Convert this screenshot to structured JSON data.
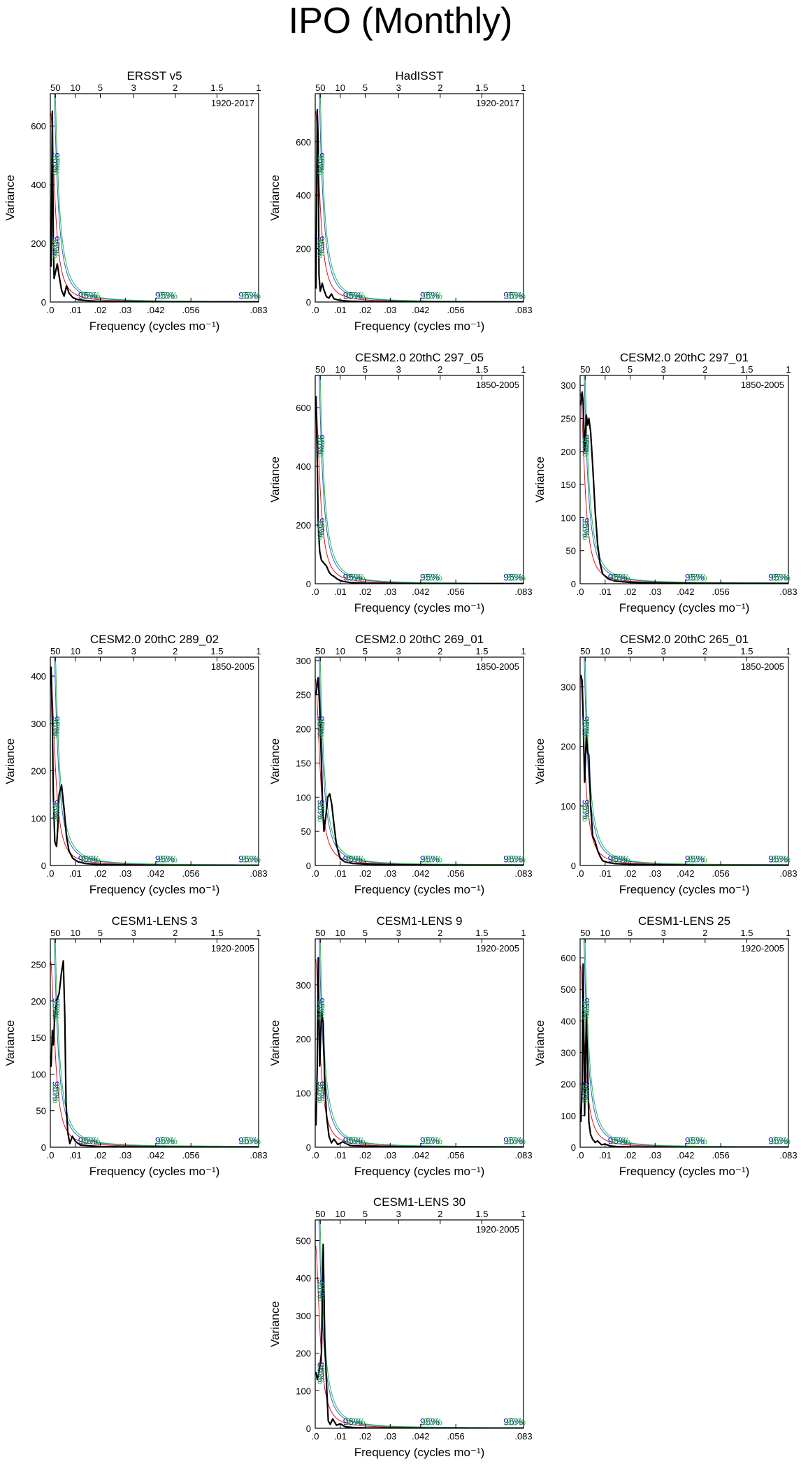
{
  "title": "IPO (Monthly)",
  "chart_data": [
    {
      "type": "line",
      "title": "ERSST v5",
      "period": "1920-2017",
      "xlabel": "Frequency (cycles mo⁻¹)",
      "ylabel": "Variance",
      "xlim": [
        0,
        0.083
      ],
      "ylim": [
        0,
        710
      ],
      "xticks": [
        ".0",
        ".01",
        ".02",
        ".03",
        ".042",
        ".056",
        ".083"
      ],
      "top_ticks": [
        "50",
        "10",
        "5",
        "3",
        "2",
        "1.5",
        "1"
      ],
      "yticks": [
        0,
        200,
        400,
        600
      ],
      "confidence_labels": [
        "95%",
        "95%",
        "95%",
        "95%",
        "95%"
      ],
      "series": [
        {
          "x": [
            0.0003,
            0.0008,
            0.0012,
            0.0015,
            0.002,
            0.0028,
            0.0035,
            0.0045,
            0.0055,
            0.0065,
            0.0075,
            0.009,
            0.011,
            0.014,
            0.02,
            0.03,
            0.05,
            0.083
          ],
          "y": [
            120,
            650,
            200,
            80,
            100,
            130,
            90,
            40,
            20,
            55,
            30,
            15,
            8,
            5,
            2,
            1,
            0.5,
            0.3
          ]
        }
      ],
      "background_red": [
        0,
        0.083
      ],
      "background_green": [
        0,
        0.083
      ],
      "background_blue": [
        0,
        0.083
      ]
    },
    {
      "type": "line",
      "title": "HadISST",
      "period": "1920-2017",
      "xlabel": "Frequency (cycles mo⁻¹)",
      "ylabel": "Variance",
      "xlim": [
        0,
        0.083
      ],
      "ylim": [
        0,
        780
      ],
      "xticks": [
        ".0",
        ".01",
        ".02",
        ".03",
        ".042",
        ".056",
        ".083"
      ],
      "top_ticks": [
        "50",
        "10",
        "5",
        "3",
        "2",
        "1.5",
        "1"
      ],
      "yticks": [
        0,
        200,
        400,
        600
      ],
      "confidence_labels": [
        "95%",
        "95%",
        "95%",
        "95%",
        "95%"
      ],
      "series": [
        {
          "x": [
            0.0003,
            0.0008,
            0.0012,
            0.0015,
            0.002,
            0.0028,
            0.0035,
            0.0045,
            0.0055,
            0.0065,
            0.0075,
            0.009,
            0.011,
            0.014,
            0.02,
            0.03,
            0.05,
            0.083
          ],
          "y": [
            50,
            720,
            600,
            100,
            40,
            70,
            45,
            20,
            15,
            30,
            12,
            8,
            5,
            3,
            2,
            1,
            0.5,
            0.3
          ]
        }
      ]
    },
    {
      "type": "line",
      "title": "CESM2.0 20thC 297_05",
      "period": "1850-2005",
      "xlabel": "Frequency (cycles mo⁻¹)",
      "ylabel": "Variance",
      "xlim": [
        0,
        0.083
      ],
      "ylim": [
        0,
        710
      ],
      "xticks": [
        ".0",
        ".01",
        ".02",
        ".03",
        ".042",
        ".056",
        ".083"
      ],
      "top_ticks": [
        "50",
        "10",
        "5",
        "3",
        "2",
        "1.5",
        "1"
      ],
      "yticks": [
        0,
        200,
        400,
        600
      ],
      "confidence_labels": [
        "95%",
        "95%",
        "95%",
        "95%",
        "95%"
      ],
      "series": [
        {
          "x": [
            0.0003,
            0.0008,
            0.0012,
            0.0018,
            0.0025,
            0.0035,
            0.0045,
            0.0055,
            0.0065,
            0.0075,
            0.009,
            0.011,
            0.014,
            0.02,
            0.03,
            0.05,
            0.083
          ],
          "y": [
            640,
            420,
            200,
            110,
            80,
            70,
            60,
            40,
            30,
            25,
            15,
            8,
            4,
            2,
            1,
            0.5,
            0.3
          ]
        }
      ]
    },
    {
      "type": "line",
      "title": "CESM2.0 20thC 297_01",
      "period": "1850-2005",
      "xlabel": "Frequency (cycles mo⁻¹)",
      "ylabel": "Variance",
      "xlim": [
        0,
        0.083
      ],
      "ylim": [
        0,
        315
      ],
      "xticks": [
        ".0",
        ".01",
        ".02",
        ".03",
        ".042",
        ".056",
        ".083"
      ],
      "top_ticks": [
        "50",
        "10",
        "5",
        "3",
        "2",
        "1.5",
        "1"
      ],
      "yticks": [
        0,
        50,
        100,
        150,
        200,
        250,
        300
      ],
      "confidence_labels": [
        "95%",
        "95%",
        "95%",
        "95%",
        "95%"
      ],
      "series": [
        {
          "x": [
            0.0003,
            0.0008,
            0.0012,
            0.0018,
            0.0025,
            0.003,
            0.0035,
            0.0042,
            0.005,
            0.006,
            0.007,
            0.008,
            0.009,
            0.011,
            0.014,
            0.02,
            0.03,
            0.05,
            0.083
          ],
          "y": [
            270,
            290,
            275,
            200,
            255,
            240,
            250,
            230,
            180,
            110,
            60,
            30,
            15,
            8,
            4,
            2,
            1,
            0.5,
            0.3
          ]
        }
      ]
    },
    {
      "type": "line",
      "title": "CESM2.0 20thC 289_02",
      "period": "1850-2005",
      "xlabel": "Frequency (cycles mo⁻¹)",
      "ylabel": "Variance",
      "xlim": [
        0,
        0.083
      ],
      "ylim": [
        0,
        440
      ],
      "xticks": [
        ".0",
        ".01",
        ".02",
        ".03",
        ".042",
        ".056",
        ".083"
      ],
      "top_ticks": [
        "50",
        "10",
        "5",
        "3",
        "2",
        "1.5",
        "1"
      ],
      "yticks": [
        0,
        100,
        200,
        300,
        400
      ],
      "confidence_labels": [
        "95%",
        "95%",
        "95%",
        "95%",
        "95%"
      ],
      "series": [
        {
          "x": [
            0.0003,
            0.0008,
            0.0012,
            0.0018,
            0.0025,
            0.003,
            0.0035,
            0.0045,
            0.0055,
            0.0065,
            0.0075,
            0.009,
            0.011,
            0.014,
            0.02,
            0.03,
            0.05,
            0.083
          ],
          "y": [
            420,
            300,
            150,
            50,
            40,
            80,
            150,
            170,
            120,
            60,
            30,
            15,
            8,
            4,
            2,
            1,
            0.5,
            0.3
          ]
        }
      ]
    },
    {
      "type": "line",
      "title": "CESM2.0 20thC 269_01",
      "period": "1850-2005",
      "xlabel": "Frequency (cycles mo⁻¹)",
      "ylabel": "Variance",
      "xlim": [
        0,
        0.083
      ],
      "ylim": [
        0,
        305
      ],
      "xticks": [
        ".0",
        ".01",
        ".02",
        ".03",
        ".042",
        ".056",
        ".083"
      ],
      "top_ticks": [
        "50",
        "10",
        "5",
        "3",
        "2",
        "1.5",
        "1"
      ],
      "yticks": [
        0,
        50,
        100,
        150,
        200,
        250,
        300
      ],
      "confidence_labels": [
        "95%",
        "95%",
        "95%",
        "95%",
        "95%"
      ],
      "series": [
        {
          "x": [
            0.0003,
            0.0008,
            0.0012,
            0.0018,
            0.0025,
            0.003,
            0.0035,
            0.0042,
            0.005,
            0.0058,
            0.0066,
            0.0075,
            0.0085,
            0.01,
            0.012,
            0.015,
            0.02,
            0.03,
            0.05,
            0.083
          ],
          "y": [
            250,
            265,
            275,
            230,
            150,
            80,
            50,
            70,
            100,
            105,
            90,
            60,
            30,
            10,
            5,
            3,
            2,
            1,
            0.5,
            0.3
          ]
        }
      ]
    },
    {
      "type": "line",
      "title": "CESM2.0 20thC 265_01",
      "period": "1850-2005",
      "xlabel": "Frequency (cycles mo⁻¹)",
      "ylabel": "Variance",
      "xlim": [
        0,
        0.083
      ],
      "ylim": [
        0,
        350
      ],
      "xticks": [
        ".0",
        ".01",
        ".02",
        ".03",
        ".042",
        ".056",
        ".083"
      ],
      "top_ticks": [
        "50",
        "10",
        "5",
        "3",
        "2",
        "1.5",
        "1"
      ],
      "yticks": [
        0,
        100,
        200,
        300
      ],
      "confidence_labels": [
        "95%",
        "95%",
        "95%",
        "95%",
        "95%"
      ],
      "series": [
        {
          "x": [
            0.0003,
            0.0008,
            0.0012,
            0.0018,
            0.0025,
            0.003,
            0.0035,
            0.0042,
            0.005,
            0.006,
            0.007,
            0.008,
            0.009,
            0.011,
            0.014,
            0.02,
            0.03,
            0.05,
            0.083
          ],
          "y": [
            320,
            310,
            250,
            140,
            220,
            190,
            185,
            100,
            50,
            40,
            25,
            15,
            8,
            5,
            3,
            2,
            1,
            0.5,
            0.3
          ]
        }
      ]
    },
    {
      "type": "line",
      "title": "CESM1-LENS 3",
      "period": "1920-2005",
      "xlabel": "Frequency (cycles mo⁻¹)",
      "ylabel": "Variance",
      "xlim": [
        0,
        0.083
      ],
      "ylim": [
        0,
        285
      ],
      "xticks": [
        ".0",
        ".01",
        ".02",
        ".03",
        ".042",
        ".056",
        ".083"
      ],
      "top_ticks": [
        "50",
        "10",
        "5",
        "3",
        "2",
        "1.5",
        "1"
      ],
      "yticks": [
        0,
        50,
        100,
        150,
        200,
        250
      ],
      "confidence_labels": [
        "95%",
        "95%",
        "95%",
        "95%",
        "95%"
      ],
      "series": [
        {
          "x": [
            0.0003,
            0.0008,
            0.0012,
            0.0018,
            0.0025,
            0.0035,
            0.0045,
            0.0052,
            0.0058,
            0.0063,
            0.007,
            0.0078,
            0.0088,
            0.01,
            0.012,
            0.015,
            0.02,
            0.03,
            0.05,
            0.083
          ],
          "y": [
            110,
            160,
            140,
            180,
            200,
            210,
            240,
            255,
            180,
            60,
            20,
            5,
            15,
            8,
            3,
            2,
            1,
            0.5,
            0.3,
            0.2
          ]
        }
      ]
    },
    {
      "type": "line",
      "title": "CESM1-LENS 9",
      "period": "1920-2005",
      "xlabel": "Frequency (cycles mo⁻¹)",
      "ylabel": "Variance",
      "xlim": [
        0,
        0.083
      ],
      "ylim": [
        0,
        385
      ],
      "xticks": [
        ".0",
        ".01",
        ".02",
        ".03",
        ".042",
        ".056",
        ".083"
      ],
      "top_ticks": [
        "50",
        "10",
        "5",
        "3",
        "2",
        "1.5",
        "1"
      ],
      "yticks": [
        0,
        100,
        200,
        300
      ],
      "confidence_labels": [
        "95%",
        "95%",
        "95%",
        "95%",
        "95%"
      ],
      "series": [
        {
          "x": [
            0.0003,
            0.0008,
            0.0012,
            0.0018,
            0.0025,
            0.0032,
            0.0038,
            0.0045,
            0.0055,
            0.0065,
            0.0075,
            0.009,
            0.011,
            0.014,
            0.02,
            0.03,
            0.05,
            0.083
          ],
          "y": [
            40,
            150,
            350,
            150,
            250,
            230,
            120,
            60,
            20,
            8,
            15,
            5,
            10,
            3,
            2,
            1,
            0.5,
            0.3
          ]
        }
      ]
    },
    {
      "type": "line",
      "title": "CESM1-LENS 25",
      "period": "1920-2005",
      "xlabel": "Frequency (cycles mo⁻¹)",
      "ylabel": "Variance",
      "xlim": [
        0,
        0.083
      ],
      "ylim": [
        0,
        660
      ],
      "xticks": [
        ".0",
        ".01",
        ".02",
        ".03",
        ".042",
        ".056",
        ".083"
      ],
      "top_ticks": [
        "50",
        "10",
        "5",
        "3",
        "2",
        "1.5",
        "1"
      ],
      "yticks": [
        0,
        100,
        200,
        300,
        400,
        500,
        600
      ],
      "confidence_labels": [
        "95%",
        "95%",
        "95%",
        "95%",
        "95%"
      ],
      "series": [
        {
          "x": [
            0.0003,
            0.0008,
            0.0012,
            0.0018,
            0.0025,
            0.003,
            0.0035,
            0.0042,
            0.005,
            0.006,
            0.007,
            0.0085,
            0.01,
            0.012,
            0.015,
            0.02,
            0.03,
            0.05,
            0.083
          ],
          "y": [
            80,
            200,
            580,
            100,
            420,
            250,
            80,
            40,
            25,
            15,
            20,
            8,
            10,
            4,
            2,
            1,
            0.5,
            0.3,
            0.2
          ]
        }
      ]
    },
    {
      "type": "line",
      "title": "CESM1-LENS 30",
      "period": "1920-2005",
      "xlabel": "Frequency (cycles mo⁻¹)",
      "ylabel": "Variance",
      "xlim": [
        0,
        0.083
      ],
      "ylim": [
        0,
        555
      ],
      "xticks": [
        ".0",
        ".01",
        ".02",
        ".03",
        ".042",
        ".056",
        ".083"
      ],
      "top_ticks": [
        "50",
        "10",
        "5",
        "3",
        "2",
        "1.5",
        "1"
      ],
      "yticks": [
        0,
        100,
        200,
        300,
        400,
        500
      ],
      "confidence_labels": [
        "95%",
        "95%",
        "95%",
        "95%",
        "95%"
      ],
      "series": [
        {
          "x": [
            0.0003,
            0.0008,
            0.0012,
            0.0018,
            0.0025,
            0.0032,
            0.0038,
            0.0045,
            0.0052,
            0.006,
            0.007,
            0.0085,
            0.01,
            0.012,
            0.015,
            0.02,
            0.03,
            0.05,
            0.083
          ],
          "y": [
            150,
            130,
            140,
            160,
            200,
            490,
            240,
            120,
            20,
            10,
            25,
            8,
            12,
            4,
            2,
            1,
            0.5,
            0.3,
            0.2
          ]
        }
      ]
    }
  ],
  "colors": {
    "spectrum": "#000000",
    "red_noise": "#e01010",
    "bound_green": "#22c040",
    "bound_blue": "#3060e0",
    "label_green": "#20b838",
    "label_blue": "#1a1ab8"
  }
}
